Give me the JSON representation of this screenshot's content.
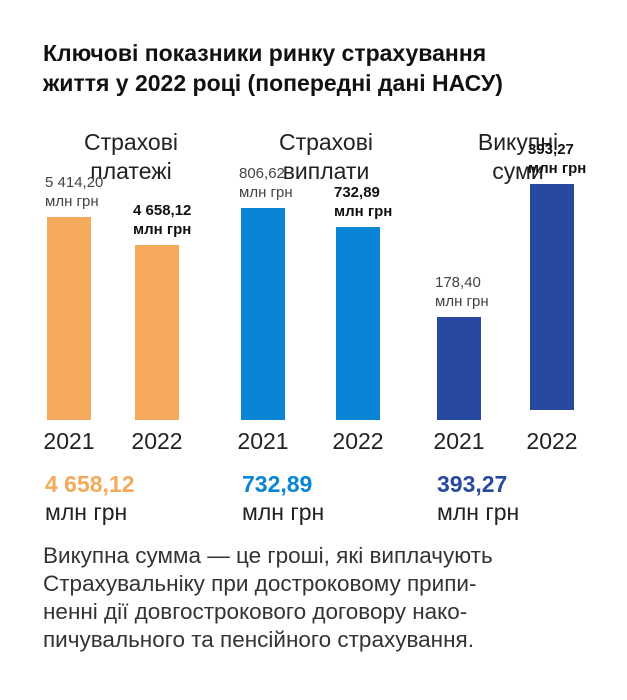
{
  "title_lines": [
    "Ключові показники ринку страхування",
    "життя у 2022 році (попередні дані НАСУ)"
  ],
  "colors": {
    "orange": "#F5A95A",
    "blue": "#0A85D6",
    "navy": "#2849A0"
  },
  "chart_data": {
    "type": "bar",
    "unit": "млн грн",
    "groups": [
      {
        "title_lines": [
          "Страхові",
          "платежі"
        ],
        "color": "#F5A95A",
        "summary_value": "4 658,12",
        "summary_unit": "млн грн",
        "bars": [
          {
            "year": "2021",
            "value": 5414.2,
            "label_value": "5 414,20",
            "label_unit": "млн грн"
          },
          {
            "year": "2022",
            "value": 4658.12,
            "label_value": "4 658,12",
            "label_unit": "млн грн"
          }
        ]
      },
      {
        "title_lines": [
          "Страхові",
          "виплати"
        ],
        "color": "#0A85D6",
        "summary_value": "732,89",
        "summary_unit": "млн грн",
        "bars": [
          {
            "year": "2021",
            "value": 806.62,
            "label_value": "806,62",
            "label_unit": "млн грн"
          },
          {
            "year": "2022",
            "value": 732.89,
            "label_value": "732,89",
            "label_unit": "млн грн"
          }
        ]
      },
      {
        "title_lines": [
          "Викупні",
          "суми"
        ],
        "color": "#2849A0",
        "summary_value": "393,27",
        "summary_unit": "млн грн",
        "bars": [
          {
            "year": "2021",
            "value": 178.4,
            "label_value": "178,40",
            "label_unit": "млн грн"
          },
          {
            "year": "2022",
            "value": 393.27,
            "label_value": "393,27",
            "label_unit": "млн грн"
          }
        ]
      }
    ]
  },
  "footnote_lines": [
    "Викупна сумма — це гроші, які виплачують",
    "Страхувальніку при достроковому припи-",
    "ненні дії довгострокового договору нако-",
    "пичувального та пенсійного страхування."
  ]
}
